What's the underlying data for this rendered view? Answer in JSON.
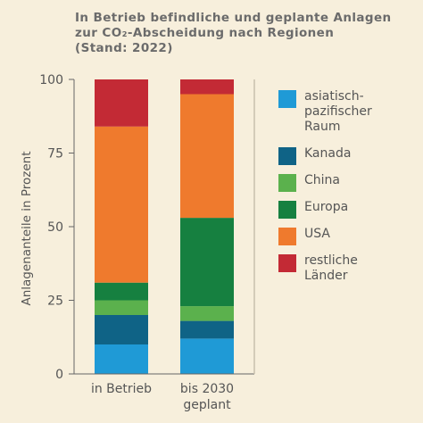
{
  "title_lines": [
    "In Betrieb befindliche und geplante Anlagen",
    "zur CO₂-Abscheidung nach Regionen",
    "(Stand: 2022)"
  ],
  "chart_data": {
    "type": "bar",
    "stacked": true,
    "categories": [
      "in Betrieb",
      "bis 2030 geplant"
    ],
    "category_label_lines": [
      [
        "in Betrieb"
      ],
      [
        "bis 2030",
        "geplant"
      ]
    ],
    "ylabel": "Anlagenanteile in Prozent",
    "ylim": [
      0,
      100
    ],
    "yticks": [
      0,
      25,
      50,
      75,
      100
    ],
    "grid": false,
    "legend_position": "right",
    "series": [
      {
        "name": "asiatisch-pazifischer Raum",
        "label_lines": [
          "asiatisch-",
          "pazifischer",
          "Raum"
        ],
        "color": "#1f9ad6",
        "values": [
          10,
          12
        ]
      },
      {
        "name": "Kanada",
        "label_lines": [
          "Kanada"
        ],
        "color": "#0f6386",
        "values": [
          10,
          6
        ]
      },
      {
        "name": "China",
        "label_lines": [
          "China"
        ],
        "color": "#5bb14d",
        "values": [
          5,
          5
        ]
      },
      {
        "name": "Europa",
        "label_lines": [
          "Europa"
        ],
        "color": "#168040",
        "values": [
          6,
          30
        ]
      },
      {
        "name": "USA",
        "label_lines": [
          "USA"
        ],
        "color": "#ef7a2d",
        "values": [
          53,
          42
        ]
      },
      {
        "name": "restliche Länder",
        "label_lines": [
          "restliche",
          "Länder"
        ],
        "color": "#c32a35",
        "values": [
          16,
          5
        ]
      }
    ]
  }
}
